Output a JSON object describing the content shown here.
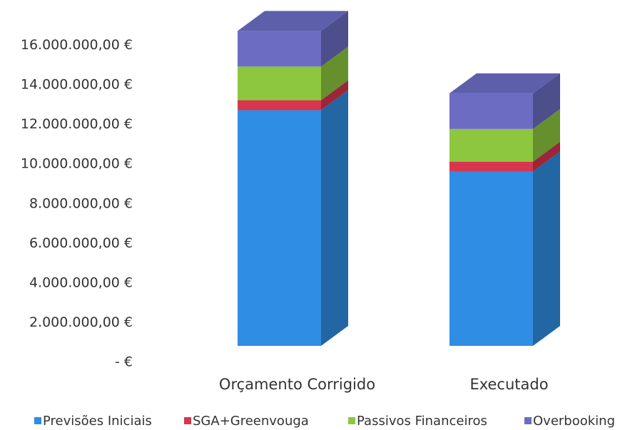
{
  "chart_data": {
    "type": "bar3d_stacked",
    "categories": [
      "Orçamento Corrigido",
      "Executado"
    ],
    "series": [
      {
        "name": "Previsões Iniciais",
        "color": "#2f8de4",
        "values": [
          11900000,
          8800000
        ]
      },
      {
        "name": "SGA+Greenvouga",
        "color": "#d8354f",
        "values": [
          500000,
          500000
        ]
      },
      {
        "name": "Passivos Financeiros",
        "color": "#8dc63f",
        "values": [
          1700000,
          1650000
        ]
      },
      {
        "name": "Overbooking",
        "color": "#6b6cc2",
        "values": [
          1800000,
          1800000
        ]
      }
    ],
    "ylim": [
      0,
      18000000
    ],
    "yticks": [
      {
        "value": 0,
        "label": "-  €"
      },
      {
        "value": 2000000,
        "label": "2.000.000,00 €"
      },
      {
        "value": 4000000,
        "label": "4.000.000,00 €"
      },
      {
        "value": 6000000,
        "label": "6.000.000,00 €"
      },
      {
        "value": 8000000,
        "label": "8.000.000,00 €"
      },
      {
        "value": 10000000,
        "label": "10.000.000,00 €"
      },
      {
        "value": 12000000,
        "label": "12.000.000,00 €"
      },
      {
        "value": 14000000,
        "label": "14.000.000,00 €"
      },
      {
        "value": 16000000,
        "label": "16.000.000,00 €"
      }
    ],
    "grid": false,
    "legend": "bottom"
  }
}
